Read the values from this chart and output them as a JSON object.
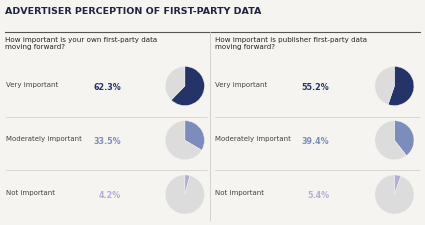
{
  "title": "ADVERTISER PERCEPTION OF FIRST-PARTY DATA",
  "left_question": "How important is your own first-party data\nmoving forward?",
  "right_question": "How important is publisher first-party data\nmoving forward?",
  "left_data": [
    {
      "label": "Very important",
      "pct": 62.3,
      "color_main": "#253468",
      "color_bg": "#dcdcdc",
      "pct_color": "#253468"
    },
    {
      "label": "Moderately important",
      "pct": 33.5,
      "color_main": "#7c8dbb",
      "color_bg": "#dcdcdc",
      "pct_color": "#7c8dbb"
    },
    {
      "label": "Not important",
      "pct": 4.2,
      "color_main": "#b3aed4",
      "color_bg": "#dcdcdc",
      "pct_color": "#b3aed4"
    }
  ],
  "right_data": [
    {
      "label": "Very important",
      "pct": 55.2,
      "color_main": "#253468",
      "color_bg": "#dcdcdc",
      "pct_color": "#253468"
    },
    {
      "label": "Moderately important",
      "pct": 39.4,
      "color_main": "#7c8dbb",
      "color_bg": "#dcdcdc",
      "pct_color": "#7c8dbb"
    },
    {
      "label": "Not important",
      "pct": 5.4,
      "color_main": "#b3aed4",
      "color_bg": "#dcdcdc",
      "pct_color": "#b3aed4"
    }
  ],
  "bg_color": "#f5f4f0",
  "title_color": "#1e2340",
  "label_color": "#444444",
  "question_color": "#222222",
  "divider_color": "#cccccc",
  "title_line_color": "#555555"
}
